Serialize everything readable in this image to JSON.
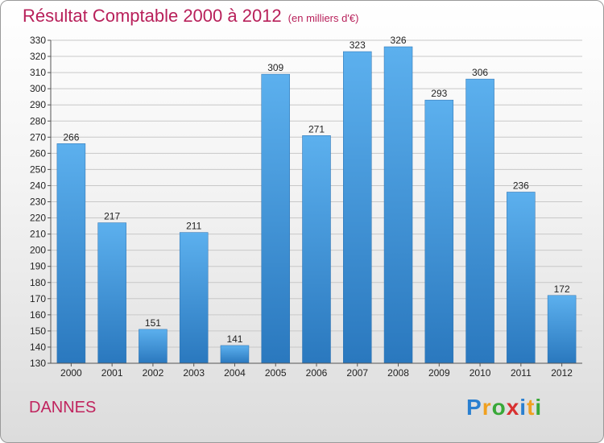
{
  "chart_data": {
    "type": "bar",
    "title": "Résultat Comptable 2000 à 2012",
    "subtitle": "(en milliers d'€)",
    "categories": [
      "2000",
      "2001",
      "2002",
      "2003",
      "2004",
      "2005",
      "2006",
      "2007",
      "2008",
      "2009",
      "2010",
      "2011",
      "2012"
    ],
    "values": [
      266,
      217,
      151,
      211,
      141,
      309,
      271,
      323,
      326,
      293,
      306,
      236,
      172
    ],
    "ylim": [
      130,
      330
    ],
    "yticks": [
      130,
      140,
      150,
      160,
      170,
      180,
      190,
      200,
      210,
      220,
      230,
      240,
      250,
      260,
      270,
      280,
      290,
      300,
      310,
      320,
      330
    ],
    "grid": true,
    "bar_color": "#3a8fd4"
  },
  "location": "DANNES",
  "brand": {
    "letters": [
      "P",
      "r",
      "o",
      "x",
      "i",
      "t",
      "i"
    ],
    "colors": [
      "#2a7fd0",
      "#f0a020",
      "#38a838",
      "#d83030",
      "#2a7fd0",
      "#f0a020",
      "#38a838"
    ]
  }
}
